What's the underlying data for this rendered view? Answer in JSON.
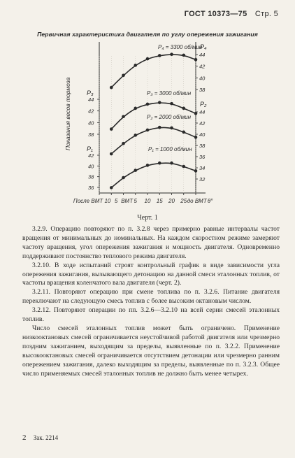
{
  "header": {
    "standard": "ГОСТ 10373—75",
    "page": "Стр. 5"
  },
  "figure": {
    "title": "Первичная характеристика двигателя по углу опережения зажигания",
    "caption": "Черт. 1"
  },
  "chart_data": {
    "type": "line",
    "title": "Первичная характеристика двигателя по углу опережения зажигания",
    "xlabel": "",
    "ylabel": "Показания весов тормоза",
    "x_ticks": [
      "После ВМТ 10",
      "5",
      "ВМТ",
      "5",
      "10",
      "15",
      "20",
      "25",
      "до ВМТ",
      "θ°"
    ],
    "x": [
      -10,
      -5,
      0,
      5,
      10,
      15,
      20,
      25
    ],
    "series": [
      {
        "name": "P₄ = 3300 об/мин",
        "x": [
          -5,
          0,
          5,
          10,
          15,
          20,
          25,
          30
        ],
        "values": [
          36.5,
          39.5,
          42.0,
          43.6,
          44.4,
          44.7,
          44.5,
          43.4
        ]
      },
      {
        "name": "P₃ = 3000 об/мин",
        "x": [
          -5,
          0,
          5,
          10,
          15,
          20,
          25,
          30
        ],
        "values": [
          39.0,
          41.4,
          43.0,
          43.8,
          44.1,
          43.9,
          43.0,
          42.0
        ]
      },
      {
        "name": "P₂ = 2000 об/мин",
        "x": [
          -5,
          0,
          5,
          10,
          15,
          20,
          25,
          30
        ],
        "values": [
          38.8,
          40.8,
          42.4,
          43.4,
          43.9,
          43.8,
          43.0,
          42.0
        ]
      },
      {
        "name": "P₁ = 1000 об/мин",
        "x": [
          -5,
          0,
          5,
          10,
          15,
          20,
          25,
          30
        ],
        "values": [
          35.2,
          37.0,
          38.3,
          39.2,
          39.6,
          39.6,
          39.0,
          38.2
        ]
      }
    ],
    "left_axis_labels": {
      "P3": {
        "label": "P₃",
        "ticks": [
          "44",
          "42",
          "40",
          "38"
        ]
      },
      "P1": {
        "label": "P₁",
        "ticks": [
          "42",
          "40",
          "38",
          "36"
        ]
      }
    },
    "right_axis_labels": {
      "P4": {
        "label": "P₄",
        "ticks": [
          "44",
          "42",
          "40",
          "38"
        ]
      },
      "P2": {
        "label": "P₂",
        "ticks": [
          "44",
          "42",
          "40",
          "38",
          "36",
          "34",
          "32"
        ]
      }
    }
  },
  "paragraphs": [
    "3.2.9. Операцию повторяют по п. 3.2.8 через примерно равные интервалы частот вращения от минимальных до номинальных. На каждом скоростном режиме замеряют частоту вращения, угол опережения зажигания и мощность двигателя. Одновременно поддерживают постоянство теплового режима двигателя.",
    "3.2.10. В ходе испытаний строят контрольный график в виде зависимости угла опережения зажигания, вызывающего детонацию на данной смеси эталонных топлив, от частоты вращения коленчатого вала двигателя (черт. 2).",
    "3.2.11. Повторяют операцию при смене топлива по п. 3.2.6. Питание двигателя переключают на следующую смесь топлив с более высоким октановым числом.",
    "3.2.12. Повторяют операции по пп. 3.2.6—3.2.10 на всей серии смесей эталонных топлив.",
    "Число смесей эталонных топлив может быть ограничено. Применение низкооктановых смесей ограничивается неустойчивой работой двигателя или чрезмерно поздним зажиганием, выходящим за пределы, выявленные по п. 3.2.2. Применение высокооктановых смесей ограничивается отсутствием детонации или чрезмерно ранним опережением зажигания, далеко выходящим за пределы, выявленные по п. 3.2.3. Общее число применяемых смесей эталонных топлив не должно быть менее четырех."
  ],
  "footer": {
    "page_number": "2",
    "order": "Зак. 2214"
  }
}
